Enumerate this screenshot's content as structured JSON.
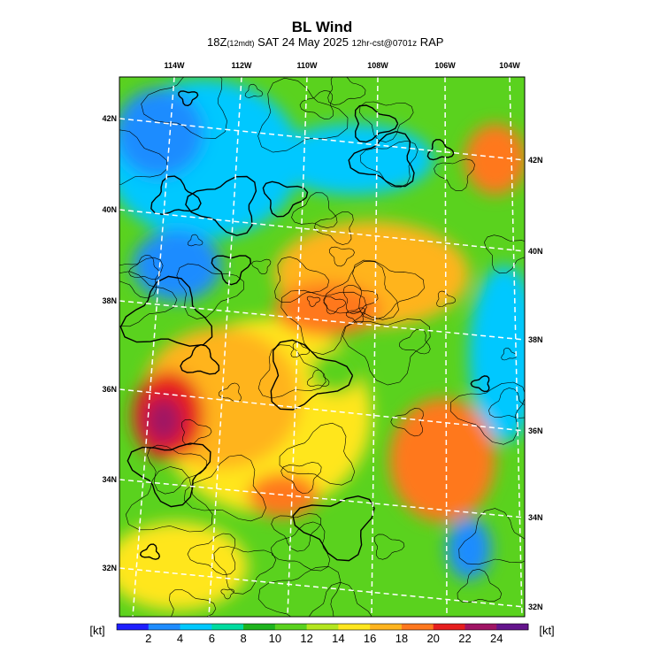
{
  "header": {
    "title": "BL Wind",
    "subtitle": [
      "18Z",
      "(12mdt)",
      " SAT 24 May 2025 ",
      "12hr-cst@0701z",
      " RAP"
    ]
  },
  "map": {
    "lon_labels": [
      "114W",
      "112W",
      "110W",
      "108W",
      "106W",
      "104W"
    ],
    "lat_labels_left": [
      "42N",
      "40N",
      "38N",
      "36N",
      "34N",
      "32N"
    ],
    "lat_labels_right": [
      "42N",
      "40N",
      "38N",
      "36N",
      "34N",
      "32N"
    ]
  },
  "colorbar": {
    "unit_left": "[kt]",
    "unit_right": "[kt]",
    "labels": [
      "2",
      "4",
      "6",
      "8",
      "10",
      "12",
      "14",
      "16",
      "18",
      "20",
      "22",
      "24"
    ],
    "colors": [
      "#1e1eff",
      "#1e8cff",
      "#00c8ff",
      "#00dca0",
      "#1eb41e",
      "#5ad21e",
      "#b4e61e",
      "#ffe61e",
      "#ffb41e",
      "#ff781e",
      "#e61e1e",
      "#a01464",
      "#64148c"
    ]
  }
}
